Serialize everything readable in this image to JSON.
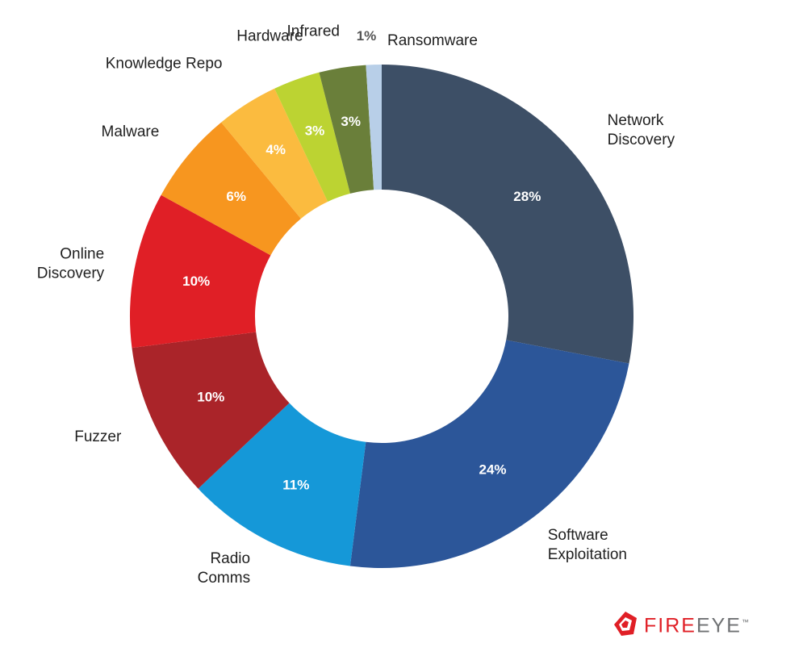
{
  "colors": {
    "network_discovery": "#3d4f66",
    "software_exploitation": "#2c5699",
    "radio_comms": "#1598d8",
    "fuzzer": "#aa2429",
    "online_discovery": "#e01f26",
    "malware": "#f7961f",
    "knowledge_repo": "#fbbb3f",
    "hardware": "#bcd332",
    "infrared": "#6a7f3a",
    "ransomware": "#b8cfe8"
  },
  "logo": {
    "text_red": "FIRE",
    "text_gray": "EYE",
    "tm": "™"
  },
  "chart_data": {
    "type": "donut",
    "title": "",
    "start_angle_deg": 0,
    "direction": "clockwise",
    "slices": [
      {
        "category": [
          "Network",
          "Discovery"
        ],
        "value": 28,
        "value_label": "28%",
        "color_key": "network_discovery",
        "pct_fill": "#ffffff"
      },
      {
        "category": [
          "Software",
          "Exploitation"
        ],
        "value": 24,
        "value_label": "24%",
        "color_key": "software_exploitation",
        "pct_fill": "#ffffff"
      },
      {
        "category": [
          "Radio",
          "Comms"
        ],
        "value": 11,
        "value_label": "11%",
        "color_key": "radio_comms",
        "pct_fill": "#ffffff"
      },
      {
        "category": [
          "Fuzzer"
        ],
        "value": 10,
        "value_label": "10%",
        "color_key": "fuzzer",
        "pct_fill": "#ffffff"
      },
      {
        "category": [
          "Online",
          "Discovery"
        ],
        "value": 10,
        "value_label": "10%",
        "color_key": "online_discovery",
        "pct_fill": "#ffffff"
      },
      {
        "category": [
          "Malware"
        ],
        "value": 6,
        "value_label": "6%",
        "color_key": "malware",
        "pct_fill": "#ffffff"
      },
      {
        "category": [
          "Knowledge Repo"
        ],
        "value": 4,
        "value_label": "4%",
        "color_key": "knowledge_repo",
        "pct_fill": "#ffffff"
      },
      {
        "category": [
          "Hardware"
        ],
        "value": 3,
        "value_label": "3%",
        "color_key": "hardware",
        "pct_fill": "#ffffff"
      },
      {
        "category": [
          "Infrared"
        ],
        "value": 3,
        "value_label": "3%",
        "color_key": "infrared",
        "pct_fill": "#ffffff"
      },
      {
        "category": [
          "Ransomware"
        ],
        "value": 1,
        "value_label": "1%",
        "color_key": "ransomware",
        "pct_fill": "#555555"
      }
    ]
  }
}
